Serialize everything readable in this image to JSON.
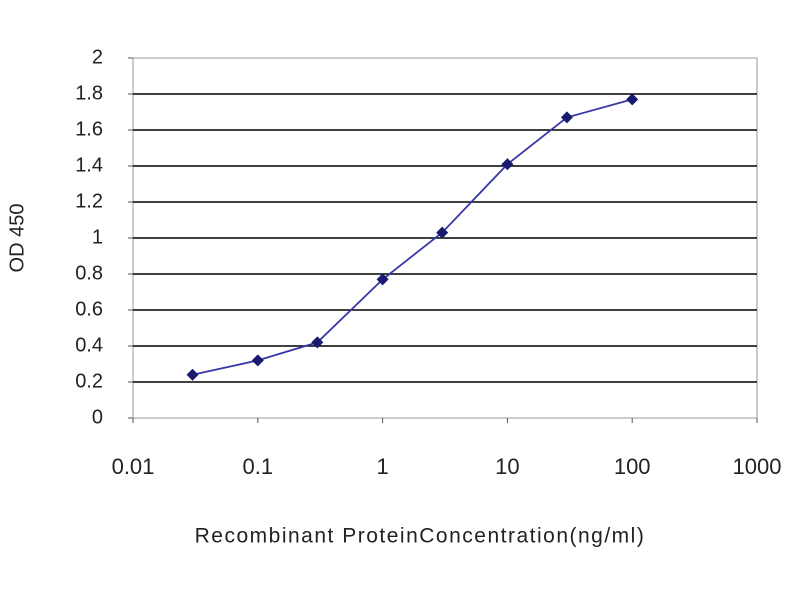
{
  "chart_data": {
    "type": "line",
    "xlabel": "Recombinant ProteinConcentration(ng/ml)",
    "ylabel": "OD 450",
    "x": [
      0.03,
      0.1,
      0.3,
      1,
      3,
      10,
      30,
      100
    ],
    "values": [
      0.24,
      0.32,
      0.42,
      0.77,
      1.03,
      1.41,
      1.67,
      1.77
    ],
    "color": "#3838a8",
    "marker_color": "#1a1a70",
    "xscale": "log",
    "xlim": [
      0.01,
      1000
    ],
    "xticks": [
      0.01,
      0.1,
      1,
      10,
      100,
      1000
    ],
    "ylim": [
      0,
      2
    ],
    "yticks": [
      0,
      0.2,
      0.4,
      0.6,
      0.8,
      1,
      1.2,
      1.4,
      1.6,
      1.8,
      2
    ],
    "grid": true
  }
}
